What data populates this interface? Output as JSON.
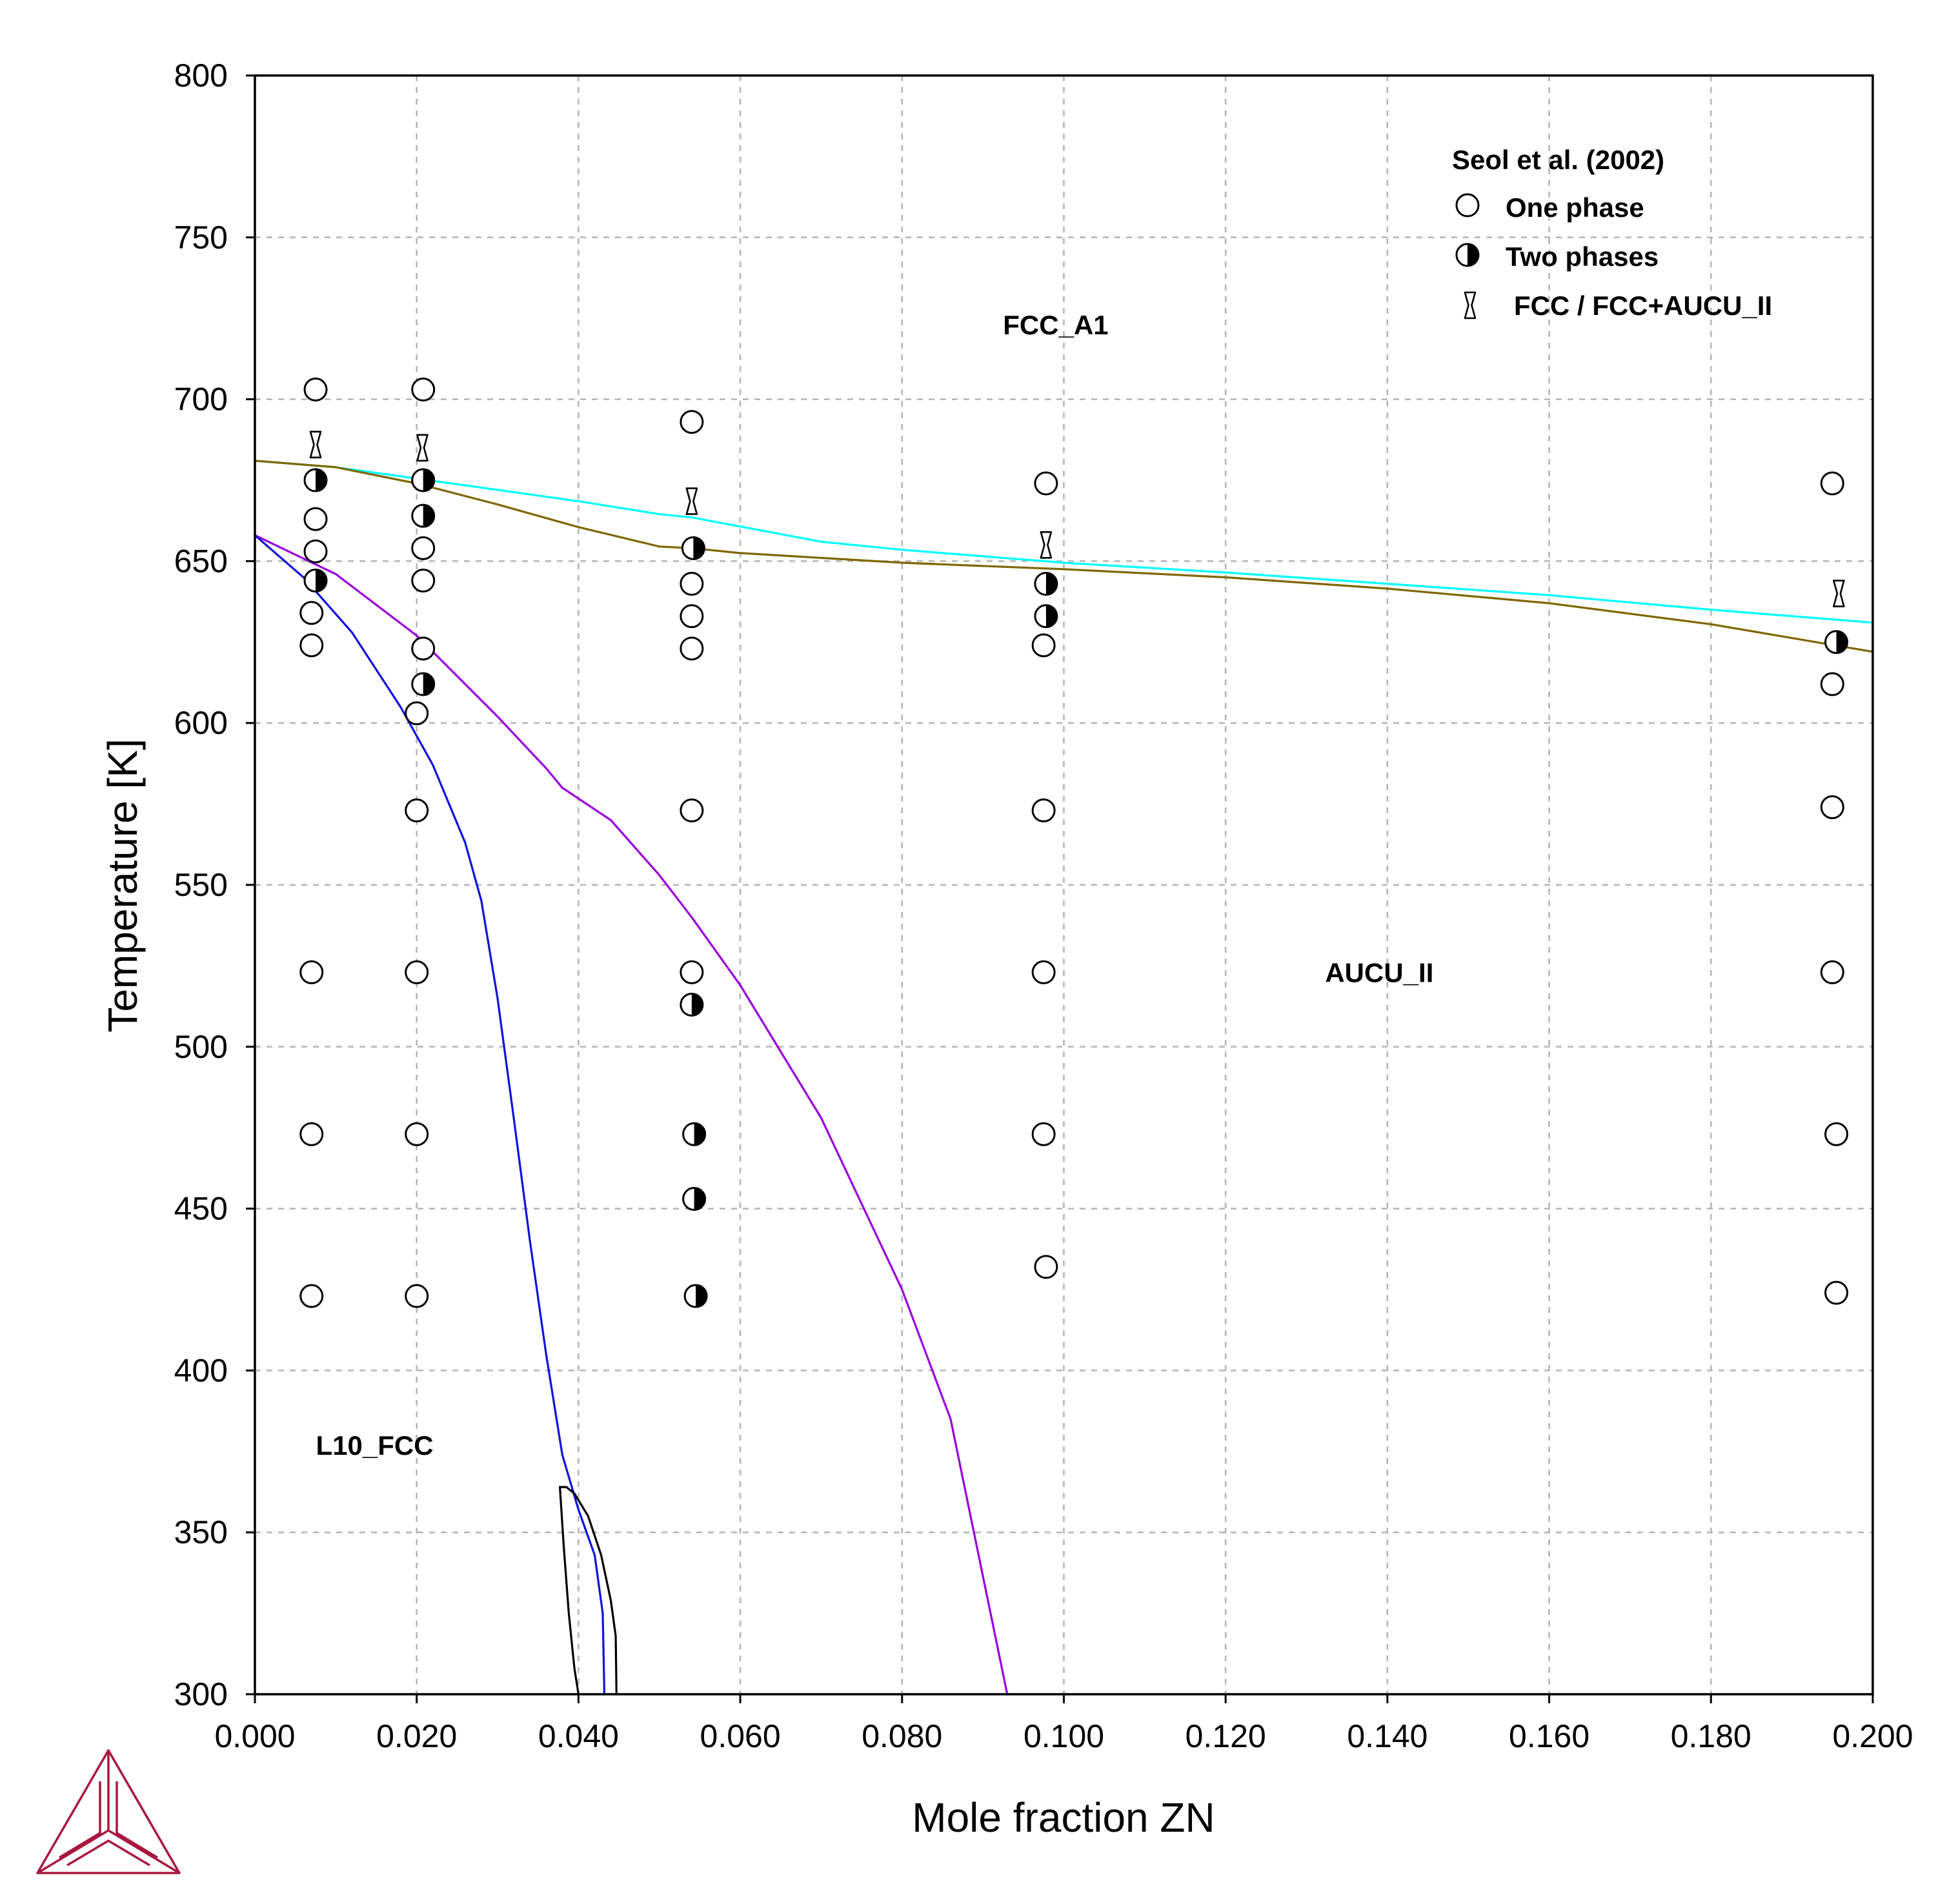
{
  "chart_data": {
    "type": "scatter",
    "title": "",
    "xlabel": "Mole fraction ZN",
    "ylabel": "Temperature [K]",
    "xlim": [
      0.0,
      0.2
    ],
    "ylim": [
      300,
      800
    ],
    "x_ticks": [
      "0.000",
      "0.020",
      "0.040",
      "0.060",
      "0.080",
      "0.100",
      "0.120",
      "0.140",
      "0.160",
      "0.180",
      "0.200"
    ],
    "y_ticks": [
      "300",
      "350",
      "400",
      "450",
      "500",
      "550",
      "600",
      "650",
      "700",
      "750",
      "800"
    ],
    "grid": true,
    "legend_position": "top-right",
    "legend_title": "Seol et al. (2002)",
    "legend": [
      {
        "marker": "open-circle",
        "label": "One phase"
      },
      {
        "marker": "half-filled-circle",
        "label": "Two phases"
      },
      {
        "marker": "hourglass",
        "label": "FCC / FCC+AUCU_II"
      }
    ],
    "region_labels": [
      {
        "text": "FCC_A1",
        "x": 0.099,
        "y": 723
      },
      {
        "text": "AUCU_II",
        "x": 0.139,
        "y": 523
      },
      {
        "text": "L10_FCC",
        "x": 0.0148,
        "y": 377
      }
    ],
    "lines": [
      {
        "color": "#00ffff",
        "points": [
          [
            0.0,
            681
          ],
          [
            0.01,
            679
          ],
          [
            0.02,
            675.5
          ],
          [
            0.03,
            672
          ],
          [
            0.04,
            668.5
          ],
          [
            0.05,
            664.5
          ],
          [
            0.054,
            663.5
          ],
          [
            0.07,
            656
          ],
          [
            0.08,
            653.5
          ],
          [
            0.1,
            649.5
          ],
          [
            0.12,
            646.5
          ],
          [
            0.14,
            643
          ],
          [
            0.16,
            639.5
          ],
          [
            0.18,
            635
          ],
          [
            0.2,
            631
          ]
        ]
      },
      {
        "color": "#806600",
        "points": [
          [
            0.0,
            681
          ],
          [
            0.01,
            679
          ],
          [
            0.02,
            674
          ],
          [
            0.03,
            667.5
          ],
          [
            0.04,
            660.5
          ],
          [
            0.05,
            654.5
          ],
          [
            0.054,
            654
          ],
          [
            0.06,
            652.5
          ],
          [
            0.08,
            649.5
          ],
          [
            0.1,
            647.5
          ],
          [
            0.12,
            645
          ],
          [
            0.14,
            641.5
          ],
          [
            0.16,
            637
          ],
          [
            0.18,
            630.5
          ],
          [
            0.2,
            622
          ]
        ]
      },
      {
        "color": "#9900dd",
        "points": [
          [
            0.0,
            658
          ],
          [
            0.01,
            646
          ],
          [
            0.02,
            627
          ],
          [
            0.03,
            602
          ],
          [
            0.036,
            586
          ],
          [
            0.038,
            580
          ],
          [
            0.044,
            570
          ],
          [
            0.05,
            553
          ],
          [
            0.054,
            540
          ],
          [
            0.06,
            519
          ],
          [
            0.07,
            478
          ],
          [
            0.08,
            425
          ],
          [
            0.086,
            385
          ],
          [
            0.093,
            300
          ]
        ]
      },
      {
        "color": "#1010dd",
        "points": [
          [
            0.0,
            658
          ],
          [
            0.006,
            645
          ],
          [
            0.012,
            628
          ],
          [
            0.018,
            605
          ],
          [
            0.022,
            587
          ],
          [
            0.026,
            563
          ],
          [
            0.028,
            545
          ],
          [
            0.03,
            515
          ],
          [
            0.032,
            478
          ],
          [
            0.034,
            440
          ],
          [
            0.036,
            405
          ],
          [
            0.038,
            374
          ],
          [
            0.04,
            357
          ],
          [
            0.042,
            343
          ],
          [
            0.043,
            325
          ],
          [
            0.0432,
            300
          ]
        ]
      },
      {
        "color": "#000000",
        "points": [
          [
            0.0377,
            364
          ],
          [
            0.0385,
            364
          ],
          [
            0.0395,
            362
          ],
          [
            0.0412,
            355
          ],
          [
            0.0428,
            343
          ],
          [
            0.044,
            329
          ],
          [
            0.0446,
            318
          ],
          [
            0.0447,
            300
          ]
        ]
      },
      {
        "color": "#000000",
        "points": [
          [
            0.0377,
            364
          ],
          [
            0.0382,
            345
          ],
          [
            0.0388,
            325
          ],
          [
            0.0395,
            308
          ],
          [
            0.04,
            300
          ]
        ]
      }
    ],
    "series": [
      {
        "name": "One phase",
        "points": [
          [
            0.0075,
            703
          ],
          [
            0.0075,
            663
          ],
          [
            0.0075,
            653
          ],
          [
            0.007,
            634
          ],
          [
            0.007,
            624
          ],
          [
            0.007,
            523
          ],
          [
            0.007,
            473
          ],
          [
            0.007,
            423
          ],
          [
            0.0208,
            703
          ],
          [
            0.0208,
            654
          ],
          [
            0.0208,
            644
          ],
          [
            0.0208,
            623
          ],
          [
            0.02,
            603
          ],
          [
            0.02,
            573
          ],
          [
            0.02,
            523
          ],
          [
            0.02,
            473
          ],
          [
            0.02,
            423
          ],
          [
            0.054,
            693
          ],
          [
            0.054,
            643
          ],
          [
            0.054,
            633
          ],
          [
            0.054,
            623
          ],
          [
            0.054,
            573
          ],
          [
            0.054,
            523
          ],
          [
            0.0978,
            674
          ],
          [
            0.0975,
            624
          ],
          [
            0.0975,
            573
          ],
          [
            0.0975,
            523
          ],
          [
            0.0975,
            473
          ],
          [
            0.0978,
            432
          ],
          [
            0.195,
            674
          ],
          [
            0.195,
            612
          ],
          [
            0.195,
            574
          ],
          [
            0.195,
            523
          ],
          [
            0.1955,
            473
          ],
          [
            0.1955,
            424
          ]
        ]
      },
      {
        "name": "Two phases",
        "points": [
          [
            0.0075,
            675
          ],
          [
            0.0075,
            644
          ],
          [
            0.0208,
            675
          ],
          [
            0.0208,
            664
          ],
          [
            0.0208,
            612
          ],
          [
            0.0542,
            654
          ],
          [
            0.054,
            513
          ],
          [
            0.0543,
            473
          ],
          [
            0.0543,
            453
          ],
          [
            0.0545,
            423
          ],
          [
            0.0978,
            643
          ],
          [
            0.0978,
            633
          ],
          [
            0.1955,
            625
          ]
        ]
      },
      {
        "name": "FCC / FCC+AUCU_II",
        "points": [
          [
            0.0075,
            686
          ],
          [
            0.0207,
            685
          ],
          [
            0.054,
            668.5
          ],
          [
            0.0978,
            655
          ],
          [
            0.1958,
            640
          ]
        ]
      }
    ]
  }
}
